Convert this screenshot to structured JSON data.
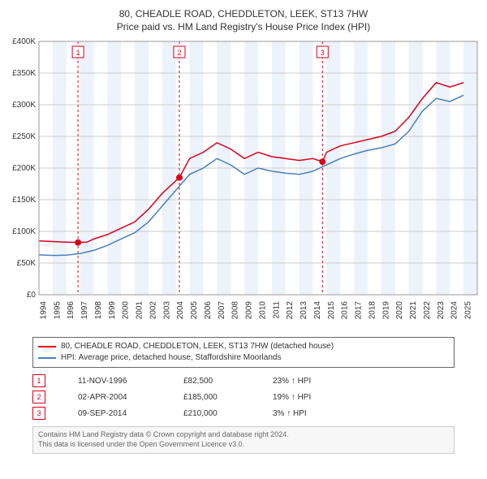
{
  "title_line1": "80, CHEADLE ROAD, CHEDDLETON, LEEK, ST13 7HW",
  "title_line2": "Price paid vs. HM Land Registry's House Price Index (HPI)",
  "chart": {
    "type": "line",
    "background_color": "#ffffff",
    "grid_color": "#cccccc",
    "band_color": "#edf3fa",
    "axis_font_size": 10,
    "x": {
      "min": 1994,
      "max": 2026,
      "ticks": [
        1994,
        1995,
        1996,
        1997,
        1998,
        1999,
        2000,
        2001,
        2002,
        2003,
        2004,
        2005,
        2006,
        2007,
        2008,
        2009,
        2010,
        2011,
        2012,
        2013,
        2014,
        2015,
        2016,
        2017,
        2018,
        2019,
        2020,
        2021,
        2022,
        2023,
        2024,
        2025
      ]
    },
    "y": {
      "min": 0,
      "max": 400000,
      "ticks": [
        0,
        50000,
        100000,
        150000,
        200000,
        250000,
        300000,
        350000,
        400000
      ],
      "tick_labels": [
        "£0",
        "£50K",
        "£100K",
        "£150K",
        "£200K",
        "£250K",
        "£300K",
        "£350K",
        "£400K"
      ],
      "label_font_size": 10
    },
    "series": [
      {
        "name": "price_paid",
        "color": "#d9001b",
        "width": 1.5,
        "points": [
          [
            1994,
            85000
          ],
          [
            1995,
            84000
          ],
          [
            1996,
            83000
          ],
          [
            1996.85,
            82500
          ],
          [
            1997.5,
            83000
          ],
          [
            1998,
            88000
          ],
          [
            1999,
            95000
          ],
          [
            2000,
            105000
          ],
          [
            2001,
            115000
          ],
          [
            2002,
            135000
          ],
          [
            2003,
            160000
          ],
          [
            2004.25,
            185000
          ],
          [
            2005,
            215000
          ],
          [
            2006,
            225000
          ],
          [
            2007,
            240000
          ],
          [
            2008,
            230000
          ],
          [
            2009,
            215000
          ],
          [
            2010,
            225000
          ],
          [
            2011,
            218000
          ],
          [
            2012,
            215000
          ],
          [
            2013,
            212000
          ],
          [
            2014,
            215000
          ],
          [
            2014.7,
            210000
          ],
          [
            2015,
            225000
          ],
          [
            2016,
            235000
          ],
          [
            2017,
            240000
          ],
          [
            2018,
            245000
          ],
          [
            2019,
            250000
          ],
          [
            2020,
            258000
          ],
          [
            2021,
            280000
          ],
          [
            2022,
            310000
          ],
          [
            2023,
            335000
          ],
          [
            2024,
            328000
          ],
          [
            2025,
            335000
          ]
        ]
      },
      {
        "name": "hpi",
        "color": "#4a7ebb",
        "width": 1.5,
        "points": [
          [
            1994,
            63000
          ],
          [
            1995,
            62000
          ],
          [
            1996,
            62500
          ],
          [
            1997,
            65000
          ],
          [
            1998,
            70000
          ],
          [
            1999,
            78000
          ],
          [
            2000,
            88000
          ],
          [
            2001,
            98000
          ],
          [
            2002,
            115000
          ],
          [
            2003,
            140000
          ],
          [
            2004,
            165000
          ],
          [
            2005,
            190000
          ],
          [
            2006,
            200000
          ],
          [
            2007,
            215000
          ],
          [
            2008,
            205000
          ],
          [
            2009,
            190000
          ],
          [
            2010,
            200000
          ],
          [
            2011,
            195000
          ],
          [
            2012,
            192000
          ],
          [
            2013,
            190000
          ],
          [
            2014,
            195000
          ],
          [
            2015,
            205000
          ],
          [
            2016,
            215000
          ],
          [
            2017,
            222000
          ],
          [
            2018,
            228000
          ],
          [
            2019,
            232000
          ],
          [
            2020,
            238000
          ],
          [
            2021,
            258000
          ],
          [
            2022,
            290000
          ],
          [
            2023,
            310000
          ],
          [
            2024,
            305000
          ],
          [
            2025,
            315000
          ]
        ]
      }
    ],
    "markers": [
      {
        "n": "1",
        "x": 1996.85,
        "y": 82500,
        "color": "#d9001b",
        "dash_color": "#d9001b"
      },
      {
        "n": "2",
        "x": 2004.25,
        "y": 185000,
        "color": "#d9001b",
        "dash_color": "#d9001b"
      },
      {
        "n": "3",
        "x": 2014.7,
        "y": 210000,
        "color": "#d9001b",
        "dash_color": "#d9001b"
      }
    ]
  },
  "legend": {
    "series1": {
      "color": "#d9001b",
      "label": "80, CHEADLE ROAD, CHEDDLETON, LEEK, ST13 7HW (detached house)"
    },
    "series2": {
      "color": "#4a7ebb",
      "label": "HPI: Average price, detached house, Staffordshire Moorlands"
    }
  },
  "marker_rows": [
    {
      "n": "1",
      "color": "#d9001b",
      "date": "11-NOV-1996",
      "price": "£82,500",
      "hpi": "23% ↑ HPI"
    },
    {
      "n": "2",
      "color": "#d9001b",
      "date": "02-APR-2004",
      "price": "£185,000",
      "hpi": "19% ↑ HPI"
    },
    {
      "n": "3",
      "color": "#d9001b",
      "date": "09-SEP-2014",
      "price": "£210,000",
      "hpi": "3% ↑ HPI"
    }
  ],
  "footer_line1": "Contains HM Land Registry data © Crown copyright and database right 2024.",
  "footer_line2": "This data is licensed under the Open Government Licence v3.0."
}
